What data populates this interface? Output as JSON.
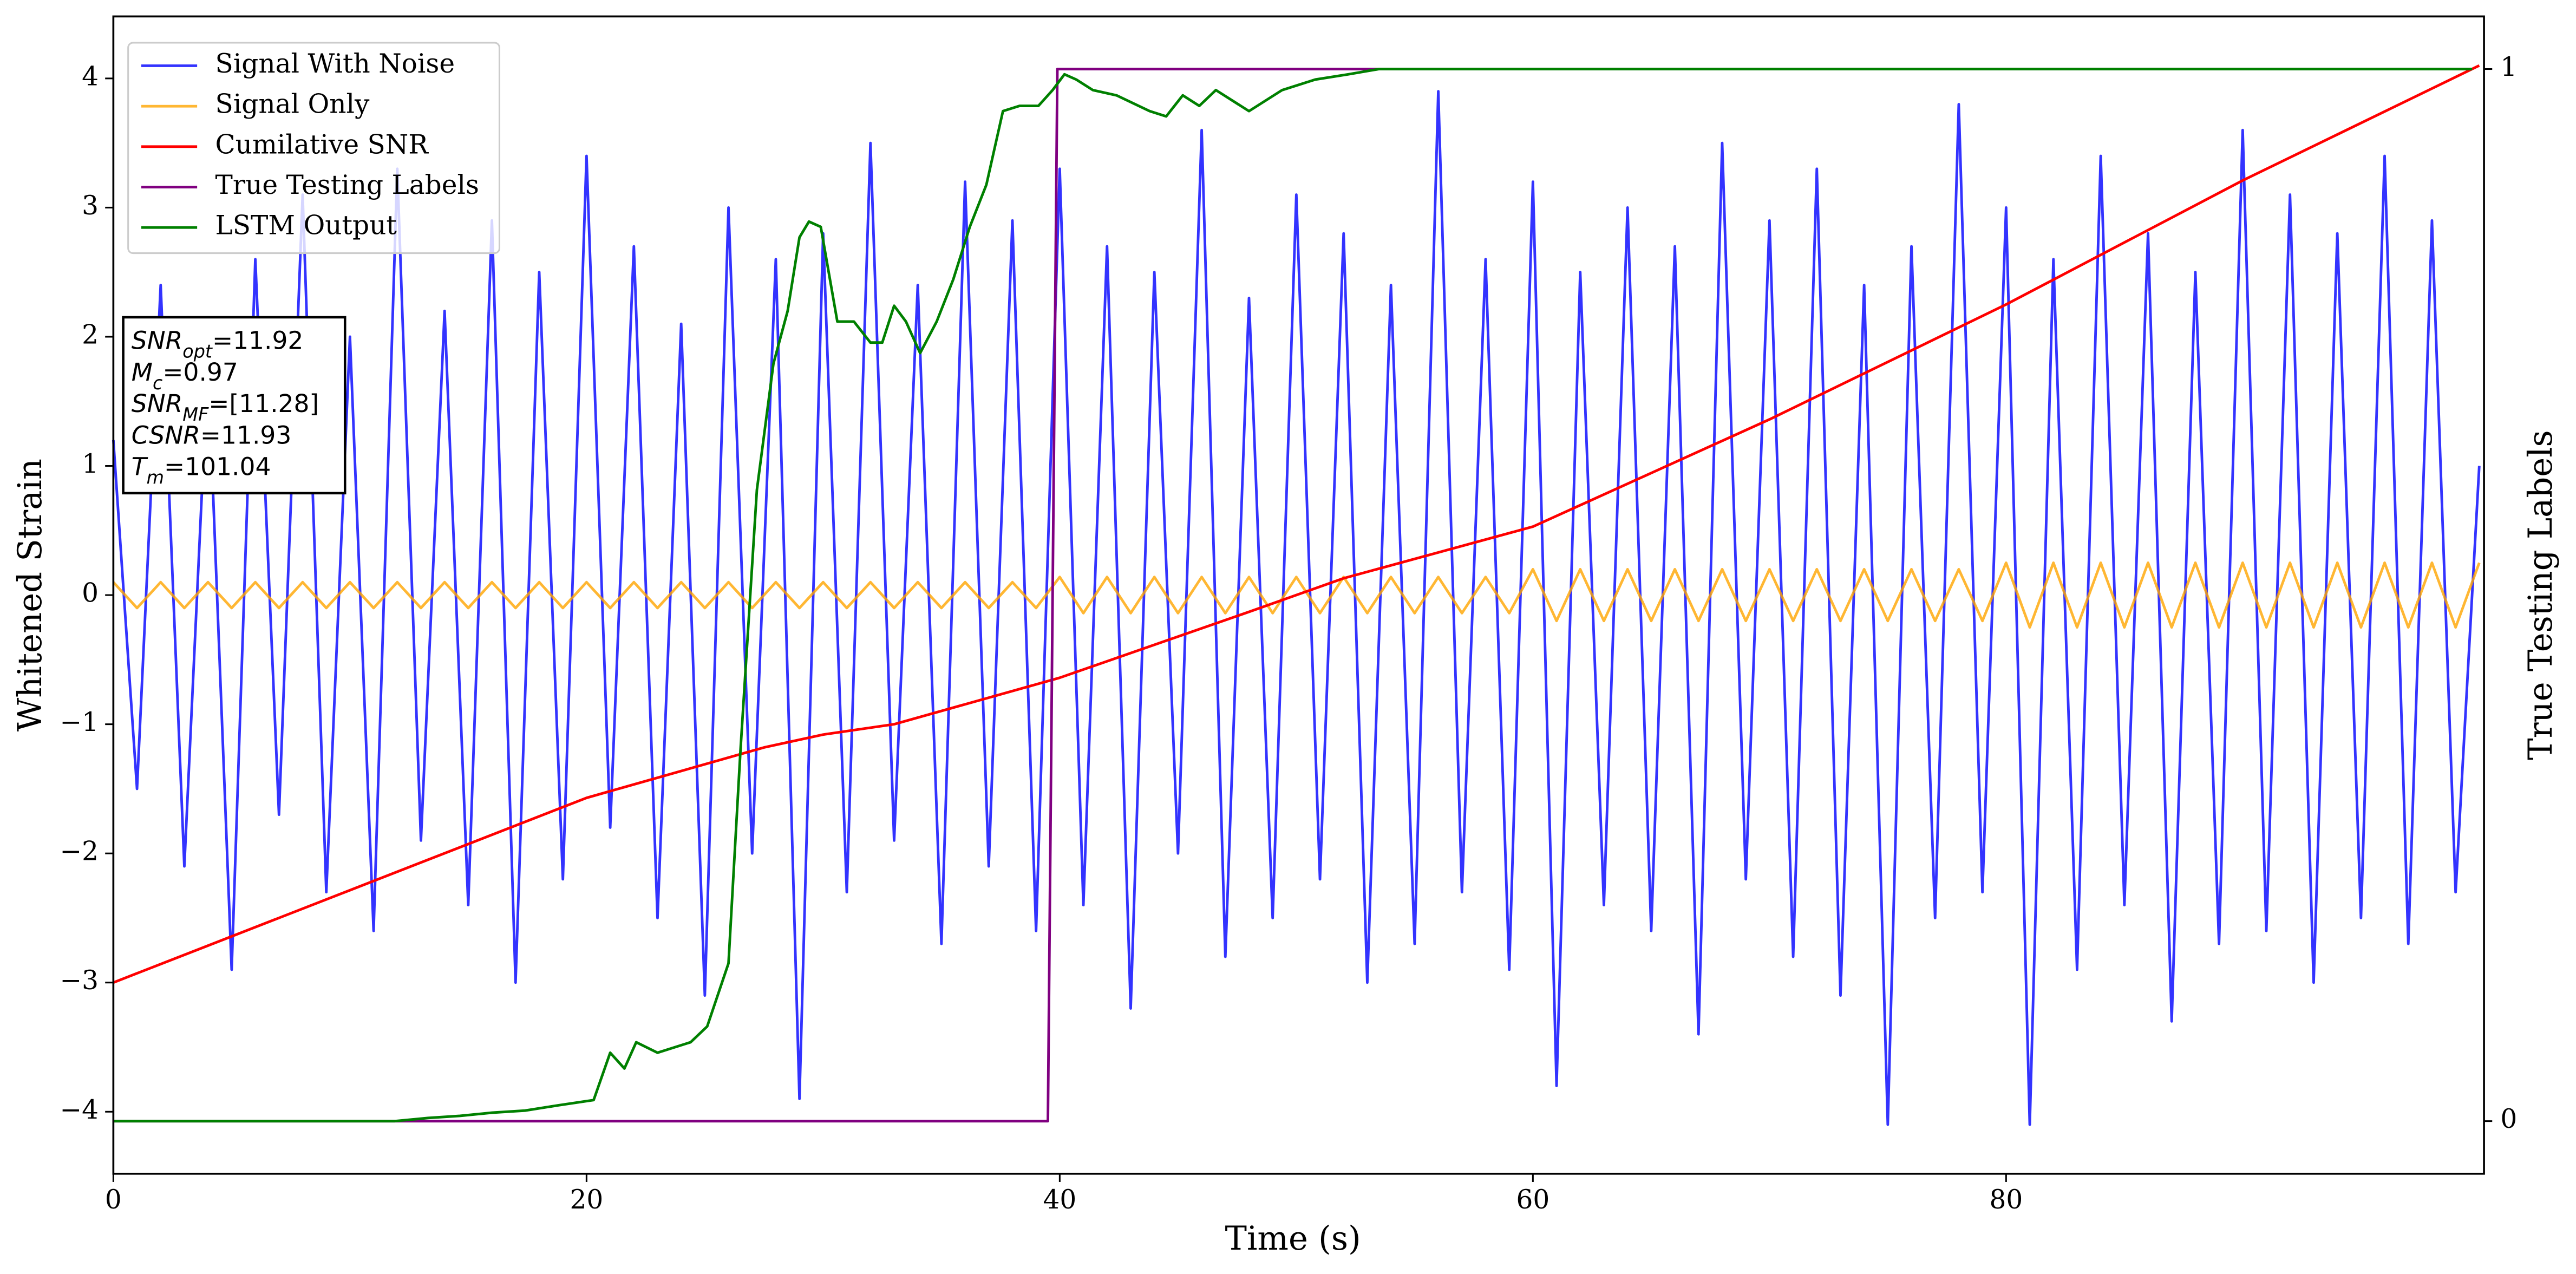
{
  "chart_data": {
    "type": "line",
    "x_label": "Time (s)",
    "y_label": "Whitened Strain",
    "y2_label": "True Testing Labels",
    "xlim": [
      0,
      100.2
    ],
    "xticks": [
      0,
      20,
      40,
      60,
      80
    ],
    "ylim": [
      -4.48,
      4.48
    ],
    "yticks": [
      {
        "value": -4,
        "label": "−4"
      },
      {
        "value": -3,
        "label": "−3"
      },
      {
        "value": -2,
        "label": "−2"
      },
      {
        "value": -1,
        "label": "−1"
      },
      0,
      1,
      2,
      3,
      4
    ],
    "y2lim": [
      -0.05,
      1.05
    ],
    "y2ticks": [
      0,
      1
    ],
    "legend": "upper left",
    "x": [
      0,
      1,
      2,
      3,
      4,
      5,
      6,
      7,
      8,
      9,
      10,
      11,
      12,
      13,
      14,
      15,
      16,
      17,
      18,
      19,
      20,
      21,
      22,
      23,
      24,
      25,
      26,
      27,
      28,
      29,
      30,
      31,
      32,
      33,
      34,
      35,
      36,
      37,
      38,
      39,
      40,
      41,
      42,
      43,
      44,
      45,
      46,
      47,
      48,
      49,
      50,
      51,
      52,
      53,
      54,
      55,
      56,
      57,
      58,
      59,
      60,
      61,
      62,
      63,
      64,
      65,
      66,
      67,
      68,
      69,
      70,
      71,
      72,
      73,
      74,
      75,
      76,
      77,
      78,
      79,
      80,
      81,
      82,
      83,
      84,
      85,
      86,
      87,
      88,
      89,
      90,
      91,
      92,
      93,
      94,
      95,
      96,
      97,
      98,
      99,
      100
    ],
    "series": [
      {
        "name": "Signal With Noise",
        "color": "#0000ff",
        "values": [
          1.2,
          -1.5,
          2.4,
          -2.1,
          1.8,
          -2.9,
          2.6,
          -1.7,
          3.1,
          -2.3,
          2.0,
          -2.6,
          3.3,
          -1.9,
          2.2,
          -2.4,
          2.9,
          -3.0,
          2.5,
          -2.2,
          3.4,
          -1.8,
          2.7,
          -2.5,
          2.1,
          -3.1,
          3.0,
          -2.0,
          2.6,
          -3.9,
          2.8,
          -2.3,
          3.5,
          -1.9,
          2.4,
          -2.7,
          3.2,
          -2.1,
          2.9,
          -2.6,
          3.3,
          -2.4,
          2.7,
          -3.2,
          2.5,
          -2.0,
          3.6,
          -2.8,
          2.3,
          -2.5,
          3.1,
          -2.2,
          2.8,
          -3.0,
          2.4,
          -2.7,
          3.9,
          -2.3,
          2.6,
          -2.9,
          3.2,
          -3.8,
          2.5,
          -2.4,
          3.0,
          -2.6,
          2.7,
          -3.4,
          3.5,
          -2.2,
          2.9,
          -2.8,
          3.3,
          -3.1,
          2.4,
          -4.1,
          2.7,
          -2.5,
          3.8,
          -2.3,
          3.0,
          -4.1,
          2.6,
          -2.9,
          3.4,
          -2.4,
          2.8,
          -3.3,
          2.5,
          -2.7,
          3.6,
          -2.6,
          3.1,
          -3.0,
          2.8,
          -2.5,
          3.4,
          -2.7,
          2.9,
          -2.3,
          1.0
        ]
      },
      {
        "name": "Signal Only",
        "color": "#ffa500",
        "values": [
          0.1,
          -0.1,
          0.1,
          -0.1,
          0.1,
          -0.1,
          0.1,
          -0.1,
          0.1,
          -0.1,
          0.1,
          -0.1,
          0.1,
          -0.1,
          0.1,
          -0.1,
          0.1,
          -0.1,
          0.1,
          -0.1,
          0.1,
          -0.1,
          0.1,
          -0.1,
          0.1,
          -0.1,
          0.1,
          -0.1,
          0.1,
          -0.1,
          0.1,
          -0.1,
          0.1,
          -0.1,
          0.1,
          -0.1,
          0.1,
          -0.1,
          0.1,
          -0.1,
          0.14,
          -0.14,
          0.14,
          -0.14,
          0.14,
          -0.14,
          0.14,
          -0.14,
          0.14,
          -0.14,
          0.14,
          -0.14,
          0.14,
          -0.14,
          0.14,
          -0.14,
          0.14,
          -0.14,
          0.14,
          -0.14,
          0.2,
          -0.2,
          0.2,
          -0.2,
          0.2,
          -0.2,
          0.2,
          -0.2,
          0.2,
          -0.2,
          0.2,
          -0.2,
          0.2,
          -0.2,
          0.2,
          -0.2,
          0.2,
          -0.2,
          0.2,
          -0.2,
          0.25,
          -0.25,
          0.25,
          -0.25,
          0.25,
          -0.25,
          0.25,
          -0.25,
          0.25,
          -0.25,
          0.25,
          -0.25,
          0.25,
          -0.25,
          0.25,
          -0.25,
          0.25,
          -0.25,
          0.25,
          -0.25,
          0.25
        ]
      },
      {
        "name": "Cumilative SNR",
        "color": "#ff0000",
        "x": [
          0,
          20,
          27.5,
          30,
          33,
          40,
          48,
          52,
          60,
          70,
          80,
          90,
          100
        ],
        "values": [
          -3,
          -1.57,
          -1.18,
          -1.08,
          -1.0,
          -0.64,
          -0.13,
          0.13,
          0.53,
          1.36,
          2.25,
          3.21,
          4.1
        ]
      },
      {
        "name": "True Testing Labels",
        "color": "#800080",
        "axis": "y2",
        "x": [
          0,
          39.5,
          39.9,
          99.7
        ],
        "values": [
          0,
          0,
          1,
          1
        ]
      },
      {
        "name": "LSTM Output",
        "color": "#008000",
        "axis": "y2",
        "x": [
          0,
          11.9,
          13.3,
          14.65,
          16,
          17.4,
          18.8,
          20.3,
          21,
          21.6,
          22.1,
          23,
          24.4,
          25.1,
          26,
          26.5,
          27.2,
          27.9,
          28.5,
          29,
          29.4,
          29.9,
          30.6,
          31.3,
          32,
          32.5,
          33,
          33.5,
          34.1,
          34.8,
          35.5,
          36.2,
          36.9,
          37.6,
          38.3,
          39.1,
          39.7,
          40.2,
          40.7,
          41.4,
          42.4,
          43.8,
          44.5,
          45.2,
          45.9,
          46.6,
          48,
          49.4,
          50.8,
          52.2,
          53.5,
          57.7,
          99.7
        ],
        "values": [
          0,
          0,
          0.003,
          0.005,
          0.008,
          0.01,
          0.015,
          0.02,
          0.065,
          0.05,
          0.075,
          0.065,
          0.075,
          0.09,
          0.15,
          0.35,
          0.6,
          0.72,
          0.77,
          0.84,
          0.855,
          0.85,
          0.76,
          0.76,
          0.74,
          0.74,
          0.775,
          0.76,
          0.73,
          0.76,
          0.8,
          0.85,
          0.89,
          0.96,
          0.965,
          0.965,
          0.98,
          0.995,
          0.99,
          0.98,
          0.975,
          0.96,
          0.955,
          0.975,
          0.965,
          0.98,
          0.96,
          0.98,
          0.99,
          0.995,
          1,
          1,
          1
        ]
      }
    ],
    "annotation": [
      {
        "text": "SNR",
        "sub": "opt",
        "value": "=11.92"
      },
      {
        "text": "M",
        "sub": "c",
        "value": "=0.97"
      },
      {
        "text": "SNR",
        "sub": "MF",
        "value": "=[11.28]"
      },
      {
        "text": "CSNR",
        "value": "=11.93"
      },
      {
        "text": "T",
        "sub": "m",
        "value": "=101.04"
      }
    ]
  }
}
